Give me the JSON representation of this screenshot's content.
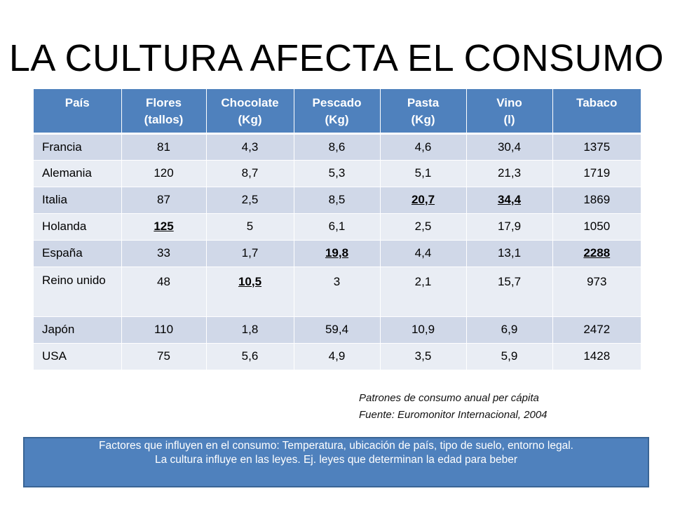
{
  "slide": {
    "title": "LA CULTURA AFECTA EL CONSUMO"
  },
  "table": {
    "headers": [
      {
        "line1": "País",
        "line2": ""
      },
      {
        "line1": "Flores",
        "line2": "(tallos)"
      },
      {
        "line1": "Chocolate",
        "line2": "(Kg)"
      },
      {
        "line1": "Pescado",
        "line2": "(Kg)"
      },
      {
        "line1": "Pasta",
        "line2": "(Kg)"
      },
      {
        "line1": "Vino",
        "line2": "(l)"
      },
      {
        "line1": "Tabaco",
        "line2": ""
      }
    ],
    "rows": [
      {
        "cells": [
          "Francia",
          "81",
          "4,3",
          "8,6",
          "4,6",
          "30,4",
          "1375"
        ]
      },
      {
        "cells": [
          "Alemania",
          "120",
          "8,7",
          "5,3",
          "5,1",
          "21,3",
          "1719"
        ]
      },
      {
        "cells": [
          "Italia",
          "87",
          "2,5",
          "8,5",
          "20,7",
          "34,4",
          "1869"
        ]
      },
      {
        "cells": [
          "Holanda",
          "125",
          "5",
          "6,1",
          "2,5",
          "17,9",
          "1050"
        ]
      },
      {
        "cells": [
          "España",
          "33",
          "1,7",
          "19,8",
          "4,4",
          "13,1",
          "2288"
        ]
      },
      {
        "cells": [
          "Reino unido",
          "48",
          "10,5",
          "3",
          "2,1",
          "15,7",
          "973"
        ]
      },
      {
        "cells": [
          "Japón",
          "110",
          "1,8",
          "59,4",
          "10,9",
          "6,9",
          "2472"
        ]
      },
      {
        "cells": [
          "USA",
          "75",
          "5,6",
          "4,9",
          "3,5",
          "5,9",
          "1428"
        ]
      }
    ]
  },
  "caption": {
    "line1": "Patrones de consumo anual per cápita",
    "line2": "Fuente: Euromonitor Internacional, 2004"
  },
  "footer": {
    "line1": "Factores que influyen en el consumo: Temperatura, ubicación de país, tipo de suelo, entorno legal.",
    "line2": "La cultura influye en las leyes. Ej. leyes que determinan la edad para beber"
  }
}
